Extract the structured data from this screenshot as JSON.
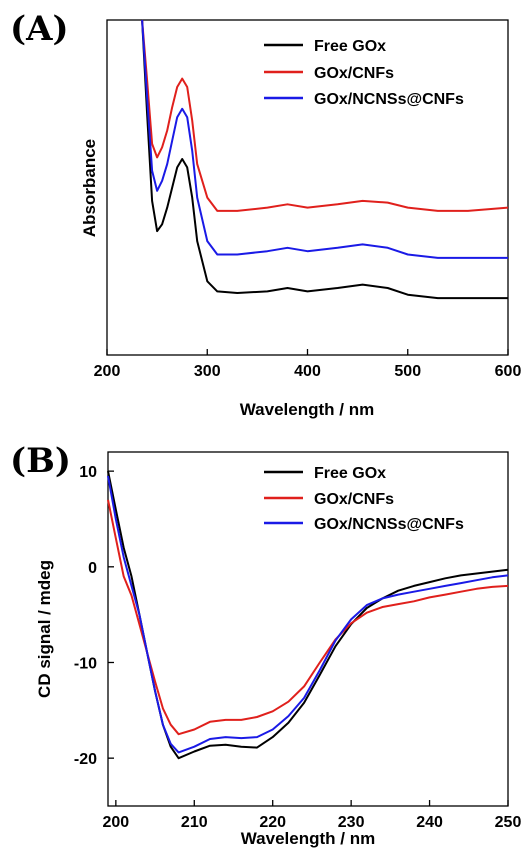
{
  "colors": {
    "Free GOx": "#000000",
    "GOx/CNFs": "#e0201c",
    "GOx/NCNSs@CNFs": "#1a1ae6"
  },
  "chart_data": [
    {
      "panel": "(A)",
      "type": "line",
      "title": "",
      "xlabel": "Wavelength / nm",
      "ylabel": "Absorbance",
      "xlim": [
        200,
        600
      ],
      "ylim": [
        0,
        1
      ],
      "xticks": [
        200,
        300,
        400,
        500,
        600
      ],
      "yticks": [],
      "grid": false,
      "legend_position": "top-right",
      "series": [
        {
          "name": "Free GOx",
          "x": [
            235,
            240,
            245,
            250,
            255,
            260,
            265,
            270,
            275,
            280,
            285,
            290,
            300,
            310,
            330,
            360,
            380,
            400,
            430,
            455,
            480,
            500,
            530,
            560,
            600
          ],
          "y": [
            1.02,
            0.72,
            0.46,
            0.37,
            0.39,
            0.44,
            0.5,
            0.56,
            0.585,
            0.56,
            0.47,
            0.34,
            0.22,
            0.19,
            0.185,
            0.19,
            0.2,
            0.19,
            0.2,
            0.21,
            0.2,
            0.18,
            0.17,
            0.17,
            0.17
          ]
        },
        {
          "name": "GOx/CNFs",
          "x": [
            235,
            240,
            245,
            250,
            255,
            260,
            265,
            270,
            275,
            280,
            285,
            290,
            300,
            310,
            330,
            360,
            380,
            400,
            430,
            455,
            480,
            500,
            530,
            560,
            600
          ],
          "y": [
            1.05,
            0.82,
            0.63,
            0.59,
            0.62,
            0.67,
            0.74,
            0.8,
            0.825,
            0.8,
            0.7,
            0.57,
            0.47,
            0.43,
            0.43,
            0.44,
            0.45,
            0.44,
            0.45,
            0.46,
            0.455,
            0.44,
            0.43,
            0.43,
            0.44
          ]
        },
        {
          "name": "GOx/NCNSs@CNFs",
          "x": [
            235,
            240,
            245,
            250,
            255,
            260,
            265,
            270,
            275,
            280,
            285,
            290,
            300,
            310,
            330,
            360,
            380,
            400,
            430,
            455,
            480,
            500,
            530,
            560,
            600
          ],
          "y": [
            1.04,
            0.77,
            0.55,
            0.49,
            0.52,
            0.57,
            0.64,
            0.71,
            0.735,
            0.71,
            0.61,
            0.47,
            0.34,
            0.3,
            0.3,
            0.31,
            0.32,
            0.31,
            0.32,
            0.33,
            0.32,
            0.3,
            0.29,
            0.29,
            0.29
          ]
        }
      ]
    },
    {
      "panel": "(B)",
      "type": "line",
      "title": "",
      "xlabel": "Wavelength / nm",
      "ylabel": "CD signal / mdeg",
      "xlim": [
        199,
        250
      ],
      "ylim": [
        -25,
        12
      ],
      "xticks": [
        200,
        210,
        220,
        230,
        240,
        250
      ],
      "yticks": [
        -20,
        -10,
        0,
        10
      ],
      "grid": false,
      "legend_position": "top-right",
      "series": [
        {
          "name": "Free GOx",
          "x": [
            199,
            200,
            201,
            202,
            203,
            204,
            205,
            206,
            207,
            208,
            210,
            212,
            214,
            216,
            218,
            220,
            222,
            224,
            226,
            228,
            230,
            232,
            234,
            236,
            238,
            240,
            242,
            244,
            246,
            248,
            250
          ],
          "y": [
            10,
            6,
            2,
            -1,
            -5,
            -9,
            -13,
            -16.5,
            -18.8,
            -20,
            -19.3,
            -18.7,
            -18.6,
            -18.8,
            -18.9,
            -17.8,
            -16.3,
            -14.2,
            -11.3,
            -8.3,
            -6,
            -4.3,
            -3.3,
            -2.5,
            -2,
            -1.6,
            -1.2,
            -0.9,
            -0.7,
            -0.5,
            -0.3
          ]
        },
        {
          "name": "GOx/CNFs",
          "x": [
            199,
            200,
            201,
            202,
            203,
            204,
            205,
            206,
            207,
            208,
            210,
            212,
            214,
            216,
            218,
            220,
            222,
            224,
            226,
            228,
            230,
            232,
            234,
            236,
            238,
            240,
            242,
            244,
            246,
            248,
            250
          ],
          "y": [
            7,
            3,
            -1,
            -3,
            -6,
            -9,
            -12,
            -14.8,
            -16.5,
            -17.5,
            -17,
            -16.2,
            -16,
            -16,
            -15.7,
            -15.1,
            -14.1,
            -12.5,
            -10,
            -7.6,
            -5.9,
            -4.8,
            -4.2,
            -3.9,
            -3.6,
            -3.2,
            -2.9,
            -2.6,
            -2.3,
            -2.1,
            -2
          ]
        },
        {
          "name": "GOx/NCNSs@CNFs",
          "x": [
            199,
            200,
            201,
            202,
            203,
            204,
            205,
            206,
            207,
            208,
            210,
            212,
            214,
            216,
            218,
            220,
            222,
            224,
            226,
            228,
            230,
            232,
            234,
            236,
            238,
            240,
            242,
            244,
            246,
            248,
            250
          ],
          "y": [
            9.5,
            5,
            1,
            -2,
            -5,
            -9,
            -13,
            -16.5,
            -18.5,
            -19.4,
            -18.8,
            -18,
            -17.8,
            -17.9,
            -17.8,
            -17,
            -15.6,
            -13.7,
            -10.8,
            -7.7,
            -5.5,
            -4,
            -3.3,
            -2.9,
            -2.6,
            -2.3,
            -2,
            -1.7,
            -1.4,
            -1.1,
            -0.9
          ]
        }
      ]
    }
  ]
}
